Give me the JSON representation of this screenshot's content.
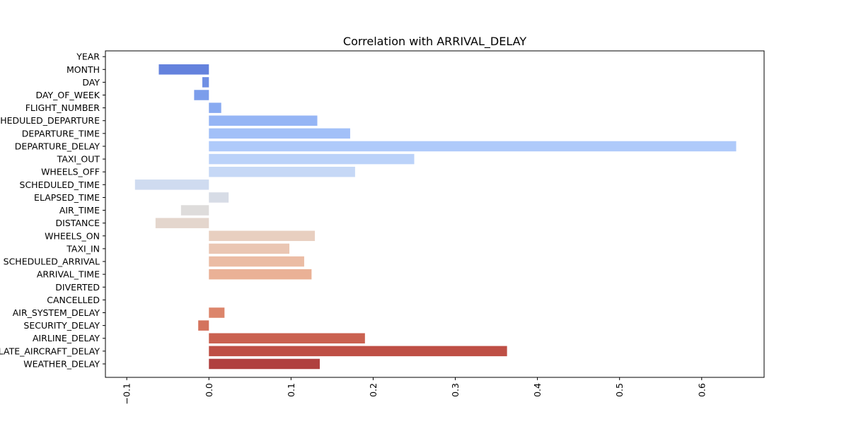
{
  "chart_data": {
    "type": "bar",
    "orientation": "horizontal",
    "title": "Correlation with ARRIVAL_DELAY",
    "xlabel": "",
    "ylabel": "",
    "xlim": [
      -0.126,
      0.676
    ],
    "grid": false,
    "legend": "none",
    "palette": "coolwarm",
    "xticks": [
      -0.1,
      0.0,
      0.1,
      0.2,
      0.3,
      0.4,
      0.5,
      0.6
    ],
    "xtick_labels": [
      "−0.1",
      "0.0",
      "0.1",
      "0.2",
      "0.3",
      "0.4",
      "0.5",
      "0.6"
    ],
    "categories": [
      "YEAR",
      "MONTH",
      "DAY",
      "DAY_OF_WEEK",
      "FLIGHT_NUMBER",
      "SCHEDULED_DEPARTURE",
      "DEPARTURE_TIME",
      "DEPARTURE_DELAY",
      "TAXI_OUT",
      "WHEELS_OFF",
      "SCHEDULED_TIME",
      "ELAPSED_TIME",
      "AIR_TIME",
      "DISTANCE",
      "WHEELS_ON",
      "TAXI_IN",
      "SCHEDULED_ARRIVAL",
      "ARRIVAL_TIME",
      "DIVERTED",
      "CANCELLED",
      "AIR_SYSTEM_DELAY",
      "SECURITY_DELAY",
      "AIRLINE_DELAY",
      "LATE_AIRCRAFT_DELAY",
      "WEATHER_DELAY"
    ],
    "values": [
      0.0,
      -0.061,
      -0.008,
      -0.018,
      0.015,
      0.132,
      0.172,
      0.642,
      0.25,
      0.178,
      -0.09,
      0.024,
      -0.034,
      -0.065,
      0.129,
      0.098,
      0.116,
      0.125,
      0.0,
      0.0,
      0.019,
      -0.013,
      0.19,
      0.363,
      0.135
    ],
    "colors": [
      "#5b78d6",
      "#6482dd",
      "#6f8fe4",
      "#7b9deb",
      "#88aaf1",
      "#95b5f5",
      "#a2c0f8",
      "#afcafa",
      "#bbd2f9",
      "#c6d8f6",
      "#cfdbf0",
      "#d7dce6",
      "#dedcdb",
      "#e4d6cd",
      "#e8cfc0",
      "#eac6b3",
      "#ebbca4",
      "#eab196",
      "#e7a487",
      "#e29479",
      "#dc856b",
      "#d4735d",
      "#ca6150",
      "#be4f45",
      "#b0403f"
    ]
  }
}
